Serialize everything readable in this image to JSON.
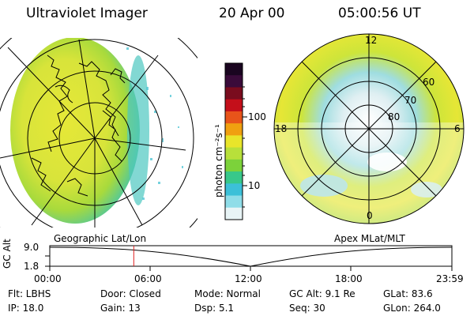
{
  "header": {
    "instrument": "Ultraviolet Imager",
    "date": "20 Apr 00",
    "time": "05:00:56 UT"
  },
  "left_panel": {
    "caption": "Geographic Lat/Lon"
  },
  "right_panel": {
    "caption": "Apex MLat/MLT",
    "mlt_labels": [
      "12",
      "18",
      "6",
      "0"
    ],
    "lat_labels": [
      "60",
      "70",
      "80"
    ]
  },
  "colorbar": {
    "unit_label": "photon cm⁻²s⁻¹",
    "ticks": [
      "100",
      "10"
    ],
    "colors": [
      "#1a0520",
      "#3a0b3a",
      "#7a0c1e",
      "#c40f1a",
      "#e8541a",
      "#f0a010",
      "#e9e52a",
      "#b8e03a",
      "#7cd23a",
      "#38c88a",
      "#3cc0d8",
      "#8fdde8",
      "#e8f4f6"
    ]
  },
  "timeline": {
    "axis_label": "GC Alt",
    "y_ticks": [
      "9.0",
      "1.8"
    ],
    "x_ticks": [
      "00:00",
      "06:00",
      "12:00",
      "18:00",
      "23:59"
    ],
    "current_time_fraction": 0.2089,
    "marker_color": "#e02020"
  },
  "info": {
    "row1": [
      "Flt: LBHS",
      "Door: Closed",
      "Mode: Normal",
      "GC Alt: 9.1 Re",
      "GLat:  83.6"
    ],
    "row2": [
      "IP: 18.0",
      "Gain: 13",
      "Dsp:     5.1",
      "Seq: 30",
      "GLon: 264.0"
    ]
  }
}
